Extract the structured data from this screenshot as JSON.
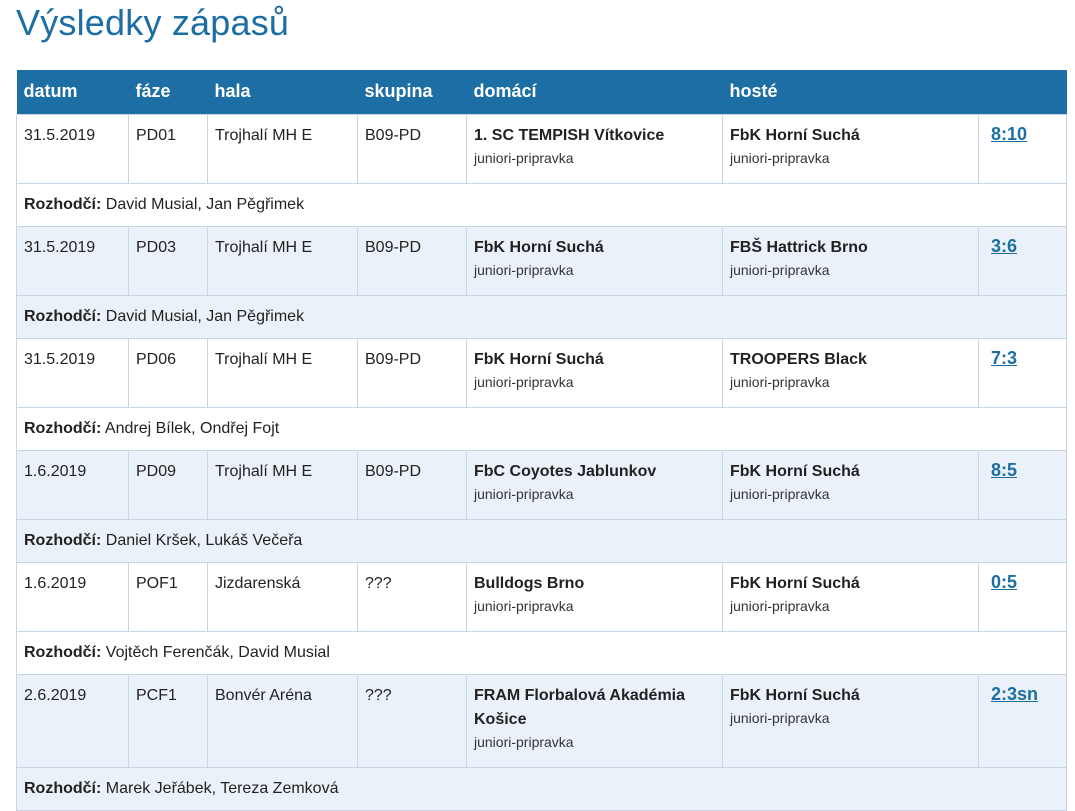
{
  "page": {
    "title": "Výsledky zápasů"
  },
  "table": {
    "headers": {
      "datum": "datum",
      "faze": "fáze",
      "hala": "hala",
      "skupina": "skupina",
      "domaci": "domácí",
      "hoste": "hosté"
    },
    "referee_label": "Rozhodčí:",
    "matches": [
      {
        "datum": "31.5.2019",
        "faze": "PD01",
        "hala": "Trojhalí MH E",
        "skupina": "B09-PD",
        "home": "1. SC TEMPISH Vítkovice",
        "home_category": "juniori-pripravka",
        "away": "FbK Horní Suchá",
        "away_category": "juniori-pripravka",
        "score": "8:10",
        "referees": "David Musial, Jan Pěgřimek"
      },
      {
        "datum": "31.5.2019",
        "faze": "PD03",
        "hala": "Trojhalí MH E",
        "skupina": "B09-PD",
        "home": "FbK Horní Suchá",
        "home_category": "juniori-pripravka",
        "away": "FBŠ Hattrick Brno",
        "away_category": "juniori-pripravka",
        "score": "3:6",
        "referees": "David Musial, Jan Pěgřimek"
      },
      {
        "datum": "31.5.2019",
        "faze": "PD06",
        "hala": "Trojhalí MH E",
        "skupina": "B09-PD",
        "home": "FbK Horní Suchá",
        "home_category": "juniori-pripravka",
        "away": "TROOPERS Black",
        "away_category": "juniori-pripravka",
        "score": "7:3",
        "referees": "Andrej Bílek, Ondřej Fojt"
      },
      {
        "datum": "1.6.2019",
        "faze": "PD09",
        "hala": "Trojhalí MH E",
        "skupina": "B09-PD",
        "home": "FbC Coyotes Jablunkov",
        "home_category": "juniori-pripravka",
        "away": "FbK Horní Suchá",
        "away_category": "juniori-pripravka",
        "score": "8:5",
        "referees": "Daniel Kršek, Lukáš Večeřa"
      },
      {
        "datum": "1.6.2019",
        "faze": "POF1",
        "hala": "Jizdarenská",
        "skupina": "???",
        "home": "Bulldogs Brno",
        "home_category": "juniori-pripravka",
        "away": "FbK Horní Suchá",
        "away_category": "juniori-pripravka",
        "score": "0:5",
        "referees": "Vojtěch Ferenčák, David Musial"
      },
      {
        "datum": "2.6.2019",
        "faze": "PCF1",
        "hala": "Bonvér Aréna",
        "skupina": "???",
        "home": "FRAM Florbalová Akadémia Košice",
        "home_category": "juniori-pripravka",
        "away": "FbK Horní Suchá",
        "away_category": "juniori-pripravka",
        "score": "2:3sn",
        "referees": "Marek Jeřábek, Tereza Zemková"
      }
    ]
  }
}
